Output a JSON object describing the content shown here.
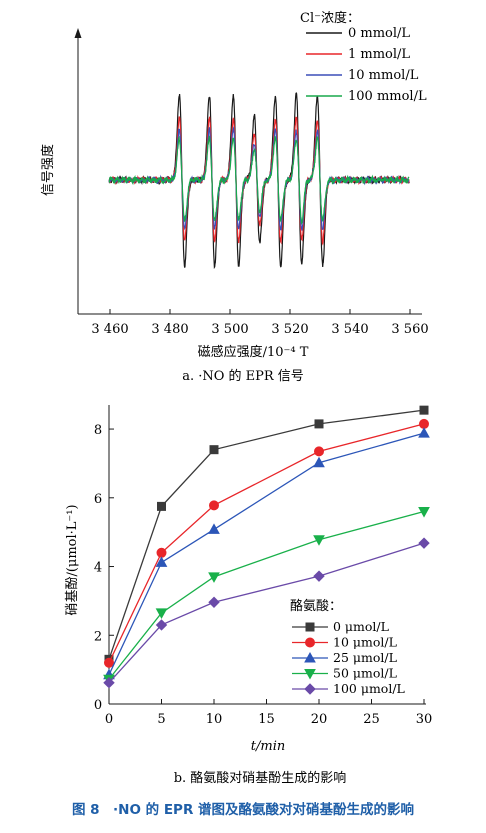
{
  "chart_data": [
    {
      "type": "line",
      "subtitle": "a. ·NO 的 EPR 信号",
      "xlabel": "磁感应强度/10⁻⁴ T",
      "ylabel": "信号强度",
      "x_ticks": [
        "3 460",
        "3 480",
        "3 500",
        "3 520",
        "3 540",
        "3 560"
      ],
      "xlim": [
        3460,
        3560
      ],
      "legend_title": "Cl⁻浓度：",
      "legend_position": "top-right",
      "grid": false,
      "peak_positions": [
        3484,
        3494,
        3502,
        3509,
        3516,
        3523,
        3530
      ],
      "series": [
        {
          "name": "0 mmol/L",
          "color": "#1a1a1a",
          "relative_amplitude": 1.0
        },
        {
          "name": "1 mmol/L",
          "color": "#e8262a",
          "relative_amplitude": 0.72
        },
        {
          "name": "10 mmol/L",
          "color": "#3b4fb8",
          "relative_amplitude": 0.58
        },
        {
          "name": "100 mmol/L",
          "color": "#19a84c",
          "relative_amplitude": 0.48
        }
      ]
    },
    {
      "type": "line",
      "subtitle": "b. 酪氨酸对硝基酚生成的影响",
      "xlabel": "t/min",
      "ylabel": "硝基酚/(μmol·L⁻¹)",
      "x": [
        0,
        5,
        10,
        20,
        30
      ],
      "x_ticks": [
        "0",
        "5",
        "10",
        "15",
        "20",
        "25",
        "30"
      ],
      "y_ticks": [
        "0",
        "2",
        "4",
        "6",
        "8"
      ],
      "xlim": [
        0,
        30
      ],
      "ylim": [
        0,
        8.7
      ],
      "legend_title": "酪氨酸：",
      "legend_position": "bottom-right",
      "grid": false,
      "series": [
        {
          "name": "0 μmol/L",
          "color": "#3a3a3a",
          "marker": "square",
          "values": [
            1.3,
            5.75,
            7.4,
            8.15,
            8.55
          ]
        },
        {
          "name": "10 μmol/L",
          "color": "#e8262a",
          "marker": "circle",
          "values": [
            1.2,
            4.4,
            5.78,
            7.35,
            8.15
          ]
        },
        {
          "name": "25 μmol/L",
          "color": "#2c56b8",
          "marker": "triangle-up",
          "values": [
            0.85,
            4.12,
            5.08,
            7.02,
            7.88
          ]
        },
        {
          "name": "50 μmol/L",
          "color": "#19b04a",
          "marker": "triangle-down",
          "values": [
            0.72,
            2.65,
            3.7,
            4.78,
            5.6
          ]
        },
        {
          "name": "100 μmol/L",
          "color": "#6a4aa8",
          "marker": "diamond",
          "values": [
            0.62,
            2.3,
            2.96,
            3.72,
            4.68
          ]
        }
      ]
    }
  ],
  "figure_caption": "图 8　·NO 的 EPR 谱图及酪氨酸对对硝基酚生成的影响"
}
